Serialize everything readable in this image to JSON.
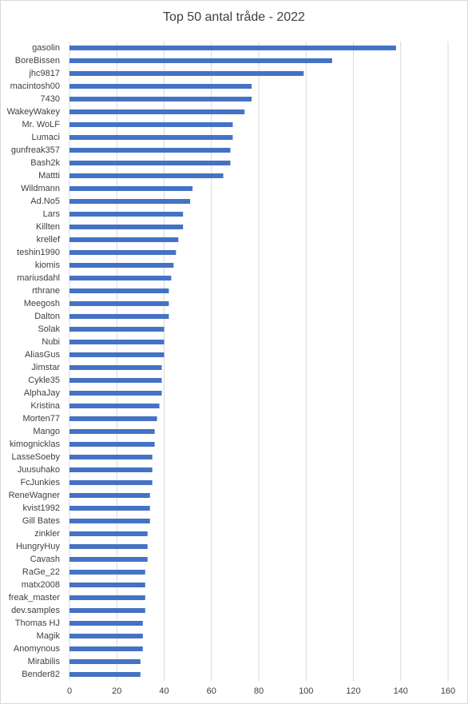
{
  "chart_data": {
    "type": "barh",
    "title": "Top 50 antal tråde - 2022",
    "categories": [
      "gasolin",
      "BoreBissen",
      "jhc9817",
      "macintosh00",
      "7430",
      "WakeyWakey",
      "Mr. WoLF",
      "Lumaci",
      "gunfreak357",
      "Bash2k",
      "Mattti",
      "Wildmann",
      "Ad.No5",
      "Lars",
      "Killten",
      "krellef",
      "teshin1990",
      "kiomis",
      "mariusdahl",
      "rthrane",
      "Meegosh",
      "Dalton",
      "Solak",
      "Nubi",
      "AliasGus",
      "Jimstar",
      "Cykle35",
      "AlphaJay",
      "Kristina",
      "Morten77",
      "Mango",
      "kimognicklas",
      "LasseSoeby",
      "Juusuhako",
      "FcJunkies",
      "ReneWagner",
      "kvist1992",
      "Gill Bates",
      "zinkler",
      "HungryHuy",
      "Cavash",
      "RaGe_22",
      "matx2008",
      "freak_master",
      "dev.samples",
      "Thomas HJ",
      "Magik",
      "Anomynous",
      "Mirabilis",
      "Bender82"
    ],
    "values": [
      138,
      111,
      99,
      77,
      77,
      74,
      69,
      69,
      68,
      68,
      65,
      52,
      51,
      48,
      48,
      46,
      45,
      44,
      43,
      42,
      42,
      42,
      40,
      40,
      40,
      39,
      39,
      39,
      38,
      37,
      36,
      36,
      35,
      35,
      35,
      34,
      34,
      34,
      33,
      33,
      33,
      32,
      32,
      32,
      32,
      31,
      31,
      31,
      30,
      30
    ],
    "color": "#4472c4",
    "xlim": [
      0,
      160
    ],
    "xticks": [
      0,
      20,
      40,
      60,
      80,
      100,
      120,
      140,
      160
    ],
    "grid": true
  }
}
